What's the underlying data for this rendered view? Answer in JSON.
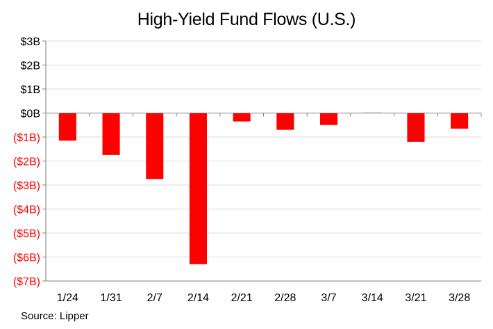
{
  "chart_data": {
    "type": "bar",
    "title": "High-Yield  Fund Flows (U.S.)",
    "source": "Source: Lipper",
    "categories": [
      "1/24",
      "1/31",
      "2/7",
      "2/14",
      "2/21",
      "2/28",
      "3/7",
      "3/14",
      "3/21",
      "3/28"
    ],
    "values": [
      -1.15,
      -1.75,
      -2.75,
      -6.3,
      -0.35,
      -0.7,
      -0.5,
      0.02,
      -1.2,
      -0.65
    ],
    "ylim": [
      -7,
      3
    ],
    "yticks": [
      3,
      2,
      1,
      0,
      -1,
      -2,
      -3,
      -4,
      -5,
      -6,
      -7
    ],
    "ytick_labels": [
      "$3B",
      "$2B",
      "$1B",
      "$0B",
      "($1B)",
      "($2B)",
      "($3B)",
      "($4B)",
      "($5B)",
      "($6B)",
      "($7B)"
    ],
    "xlabel": "",
    "ylabel": "",
    "grid": true,
    "colors": {
      "negative_bar": "#ff0000",
      "positive_bar": "#4f7f8f",
      "negative_label": "#ff0000",
      "positive_label": "#000000",
      "grid": "#d9d9d9",
      "axis": "#808080"
    }
  }
}
